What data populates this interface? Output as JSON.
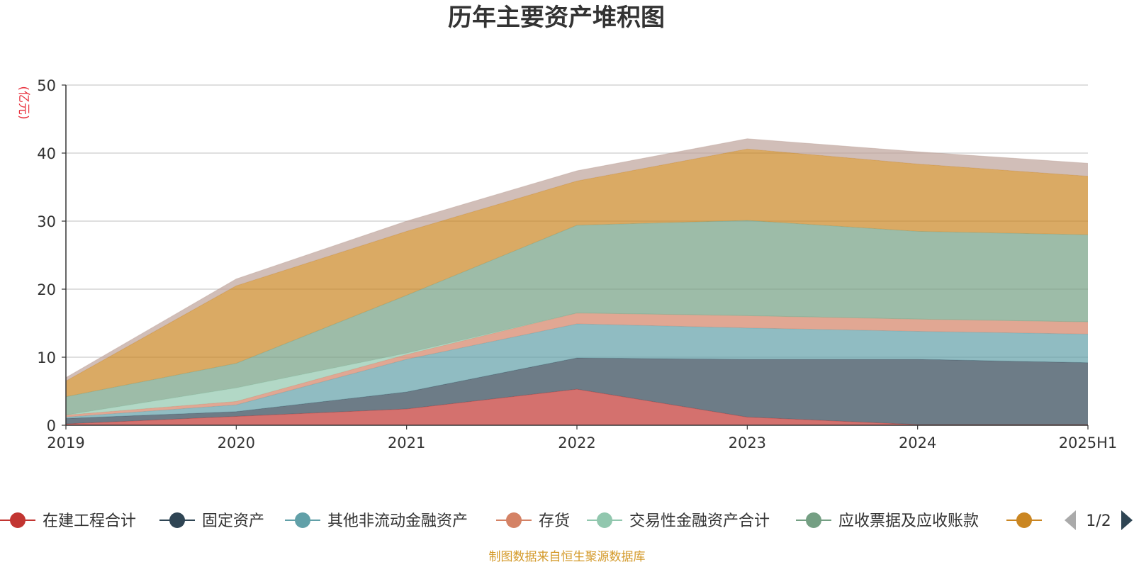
{
  "chart_data": {
    "type": "area",
    "stacked": true,
    "title": "历年主要资产堆积图",
    "unit_label": "(亿元)",
    "x": [
      "2019",
      "2020",
      "2021",
      "2022",
      "2023",
      "2024",
      "2025H1"
    ],
    "ylim": [
      0,
      50
    ],
    "yticks": [
      "0",
      "10",
      "20",
      "30",
      "40",
      "50"
    ],
    "grid": true,
    "legend_position": "bottom",
    "series": [
      {
        "name": "在建工程合计",
        "color": "#c23531",
        "values": [
          0.2,
          1.3,
          2.4,
          5.3,
          1.2,
          0.1,
          0.1
        ]
      },
      {
        "name": "固定资产",
        "color": "#2f4554",
        "values": [
          0.8,
          0.7,
          2.5,
          4.6,
          8.5,
          9.6,
          9.1
        ]
      },
      {
        "name": "其他非流动金融资产",
        "color": "#61a0a8",
        "values": [
          0.2,
          1.0,
          4.8,
          5.0,
          4.6,
          4.1,
          4.2
        ]
      },
      {
        "name": "存货",
        "color": "#d48265",
        "values": [
          0.3,
          0.5,
          0.7,
          1.6,
          1.8,
          1.8,
          1.8
        ]
      },
      {
        "name": "交易性金融资产合计",
        "color": "#91c7ae",
        "values": [
          0.0,
          2.0,
          0.2,
          0.0,
          0.0,
          0.0,
          0.0
        ]
      },
      {
        "name": "应收票据及应收账款",
        "color": "#749f83",
        "values": [
          2.7,
          3.6,
          8.5,
          12.9,
          14.0,
          12.9,
          12.8
        ]
      },
      {
        "name": "",
        "color": "#ca8622",
        "values": [
          2.3,
          11.4,
          9.4,
          6.5,
          10.5,
          9.9,
          8.6
        ]
      },
      {
        "name": "",
        "color": "#bda29a",
        "values": [
          0.5,
          1.0,
          1.5,
          1.5,
          1.5,
          1.8,
          1.9
        ]
      }
    ]
  },
  "legend": {
    "page_indicator": "1/2"
  },
  "footer": {
    "source_text": "制图数据来自恒生聚源数据库"
  }
}
